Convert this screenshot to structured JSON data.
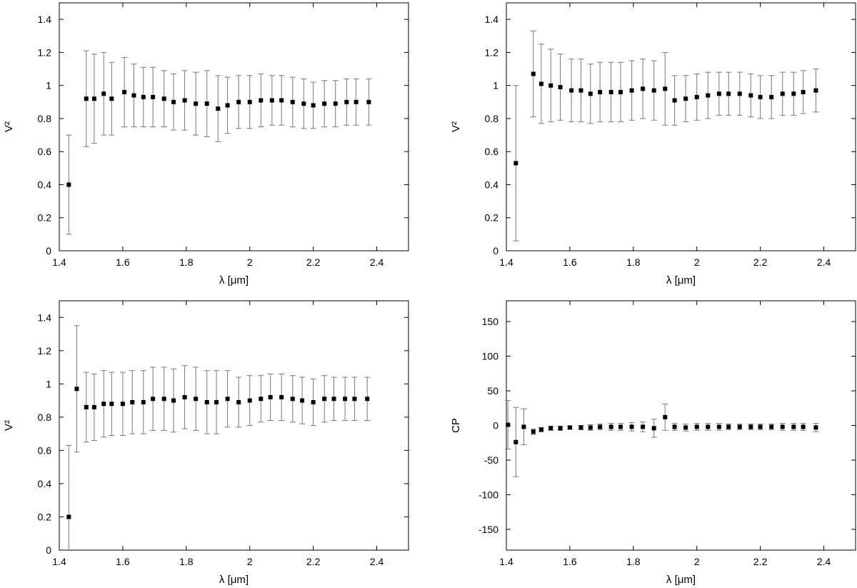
{
  "chart_data": [
    {
      "type": "scatter",
      "xlabel": "λ [μm]",
      "ylabel": "V²",
      "xlim": [
        1.4,
        2.5
      ],
      "ylim": [
        0,
        1.5
      ],
      "xticks": [
        "1.4",
        "1.6",
        "1.8",
        "2",
        "2.2",
        "2.4"
      ],
      "xtick_values": [
        1.4,
        1.6,
        1.8,
        2.0,
        2.2,
        2.4
      ],
      "yticks": [
        "0",
        "0.2",
        "0.4",
        "0.6",
        "0.8",
        "1",
        "1.2",
        "1.4"
      ],
      "ytick_values": [
        0,
        0.2,
        0.4,
        0.6,
        0.8,
        1.0,
        1.2,
        1.4
      ],
      "error_bars": true,
      "grid": false,
      "x": [
        1.43,
        1.485,
        1.51,
        1.54,
        1.565,
        1.605,
        1.635,
        1.665,
        1.695,
        1.73,
        1.76,
        1.795,
        1.83,
        1.865,
        1.9,
        1.93,
        1.965,
        2.0,
        2.035,
        2.07,
        2.1,
        2.135,
        2.17,
        2.2,
        2.235,
        2.27,
        2.305,
        2.335,
        2.375
      ],
      "y": [
        0.4,
        0.92,
        0.92,
        0.95,
        0.92,
        0.96,
        0.94,
        0.93,
        0.93,
        0.92,
        0.9,
        0.91,
        0.89,
        0.89,
        0.86,
        0.88,
        0.9,
        0.9,
        0.91,
        0.91,
        0.91,
        0.9,
        0.89,
        0.88,
        0.89,
        0.89,
        0.9,
        0.9,
        0.9
      ],
      "yerr": [
        0.3,
        0.29,
        0.27,
        0.25,
        0.22,
        0.21,
        0.19,
        0.18,
        0.18,
        0.17,
        0.17,
        0.18,
        0.19,
        0.2,
        0.2,
        0.17,
        0.16,
        0.16,
        0.16,
        0.15,
        0.15,
        0.15,
        0.15,
        0.14,
        0.14,
        0.14,
        0.14,
        0.14,
        0.14
      ]
    },
    {
      "type": "scatter",
      "xlabel": "λ [μm]",
      "ylabel": "V²",
      "xlim": [
        1.4,
        2.5
      ],
      "ylim": [
        0,
        1.5
      ],
      "xticks": [
        "1.4",
        "1.6",
        "1.8",
        "2",
        "2.2",
        "2.4"
      ],
      "xtick_values": [
        1.4,
        1.6,
        1.8,
        2.0,
        2.2,
        2.4
      ],
      "yticks": [
        "0",
        "0.2",
        "0.4",
        "0.6",
        "0.8",
        "1",
        "1.2",
        "1.4"
      ],
      "ytick_values": [
        0,
        0.2,
        0.4,
        0.6,
        0.8,
        1.0,
        1.2,
        1.4
      ],
      "error_bars": true,
      "grid": false,
      "x": [
        1.43,
        1.485,
        1.51,
        1.54,
        1.57,
        1.605,
        1.635,
        1.665,
        1.695,
        1.73,
        1.76,
        1.795,
        1.83,
        1.865,
        1.9,
        1.93,
        1.965,
        2.0,
        2.035,
        2.07,
        2.1,
        2.135,
        2.17,
        2.2,
        2.235,
        2.27,
        2.305,
        2.335,
        2.375
      ],
      "y": [
        0.53,
        1.07,
        1.01,
        1.0,
        0.99,
        0.97,
        0.97,
        0.95,
        0.96,
        0.96,
        0.96,
        0.97,
        0.98,
        0.97,
        0.98,
        0.91,
        0.92,
        0.93,
        0.94,
        0.95,
        0.95,
        0.95,
        0.94,
        0.93,
        0.93,
        0.95,
        0.95,
        0.96,
        0.97
      ],
      "yerr": [
        0.47,
        0.26,
        0.24,
        0.22,
        0.2,
        0.19,
        0.19,
        0.18,
        0.18,
        0.18,
        0.18,
        0.18,
        0.18,
        0.18,
        0.22,
        0.15,
        0.14,
        0.14,
        0.14,
        0.13,
        0.13,
        0.13,
        0.13,
        0.13,
        0.13,
        0.13,
        0.13,
        0.13,
        0.13
      ]
    },
    {
      "type": "scatter",
      "xlabel": "λ [μm]",
      "ylabel": "V²",
      "xlim": [
        1.4,
        2.5
      ],
      "ylim": [
        0,
        1.5
      ],
      "xticks": [
        "1.4",
        "1.6",
        "1.8",
        "2",
        "2.2",
        "2.4"
      ],
      "xtick_values": [
        1.4,
        1.6,
        1.8,
        2.0,
        2.2,
        2.4
      ],
      "yticks": [
        "0",
        "0.2",
        "0.4",
        "0.6",
        "0.8",
        "1",
        "1.2",
        "1.4"
      ],
      "ytick_values": [
        0,
        0.2,
        0.4,
        0.6,
        0.8,
        1.0,
        1.2,
        1.4
      ],
      "error_bars": true,
      "grid": false,
      "x": [
        1.43,
        1.455,
        1.485,
        1.51,
        1.54,
        1.565,
        1.6,
        1.63,
        1.665,
        1.695,
        1.73,
        1.76,
        1.795,
        1.83,
        1.865,
        1.895,
        1.93,
        1.965,
        2.0,
        2.035,
        2.065,
        2.1,
        2.135,
        2.165,
        2.2,
        2.235,
        2.265,
        2.3,
        2.33,
        2.37
      ],
      "y": [
        0.2,
        0.97,
        0.86,
        0.86,
        0.88,
        0.88,
        0.88,
        0.89,
        0.89,
        0.91,
        0.91,
        0.9,
        0.92,
        0.91,
        0.89,
        0.89,
        0.91,
        0.89,
        0.9,
        0.91,
        0.92,
        0.92,
        0.91,
        0.9,
        0.89,
        0.91,
        0.91,
        0.91,
        0.91,
        0.91
      ],
      "yerr": [
        0.43,
        0.38,
        0.21,
        0.2,
        0.2,
        0.19,
        0.19,
        0.19,
        0.19,
        0.19,
        0.19,
        0.19,
        0.19,
        0.19,
        0.19,
        0.19,
        0.17,
        0.15,
        0.15,
        0.14,
        0.14,
        0.14,
        0.14,
        0.14,
        0.14,
        0.14,
        0.13,
        0.13,
        0.13,
        0.13
      ]
    },
    {
      "type": "scatter",
      "xlabel": "λ [μm]",
      "ylabel": "CP",
      "xlim": [
        1.4,
        2.5
      ],
      "ylim": [
        -180,
        180
      ],
      "xticks": [
        "1.4",
        "1.6",
        "1.8",
        "2",
        "2.2",
        "2.4"
      ],
      "xtick_values": [
        1.4,
        1.6,
        1.8,
        2.0,
        2.2,
        2.4
      ],
      "yticks": [
        "-150",
        "-100",
        "-50",
        "0",
        "50",
        "100",
        "150"
      ],
      "ytick_values": [
        -150,
        -100,
        -50,
        0,
        50,
        100,
        150
      ],
      "error_bars": true,
      "grid": false,
      "x": [
        1.405,
        1.43,
        1.455,
        1.485,
        1.51,
        1.54,
        1.57,
        1.6,
        1.635,
        1.665,
        1.695,
        1.73,
        1.76,
        1.795,
        1.83,
        1.865,
        1.9,
        1.93,
        1.965,
        2.0,
        2.035,
        2.07,
        2.1,
        2.135,
        2.17,
        2.2,
        2.235,
        2.27,
        2.305,
        2.335,
        2.375
      ],
      "y": [
        1,
        -24,
        -2,
        -9,
        -6,
        -4,
        -4,
        -3,
        -3,
        -3,
        -2,
        -2,
        -2,
        -2,
        -2,
        -4,
        12,
        -2,
        -3,
        -2,
        -2,
        -2,
        -2,
        -2,
        -2,
        -2,
        -2,
        -2,
        -2,
        -2,
        -3
      ],
      "yerr": [
        35,
        50,
        26,
        4,
        3,
        3,
        3,
        2,
        3,
        4,
        4,
        5,
        5,
        6,
        7,
        13,
        19,
        5,
        5,
        5,
        5,
        5,
        4,
        4,
        4,
        4,
        4,
        5,
        5,
        5,
        6
      ]
    }
  ]
}
